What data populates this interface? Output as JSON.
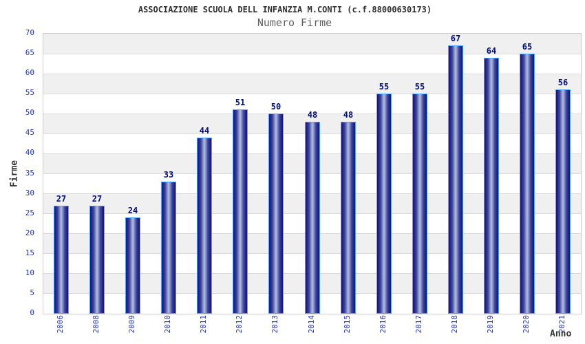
{
  "header": {
    "title": "ASSOCIAZIONE SCUOLA DELL INFANZIA M.CONTI (c.f.88000630173)",
    "subtitle": "Numero Firme"
  },
  "chart_data": {
    "type": "bar",
    "title": "ASSOCIAZIONE SCUOLA DELL INFANZIA M.CONTI (c.f.88000630173)",
    "subtitle": "Numero Firme",
    "xlabel": "Anno",
    "ylabel": "Firme",
    "categories": [
      "2006",
      "2008",
      "2009",
      "2010",
      "2011",
      "2012",
      "2013",
      "2014",
      "2015",
      "2016",
      "2017",
      "2018",
      "2019",
      "2020",
      "2021"
    ],
    "values": [
      27,
      27,
      24,
      33,
      44,
      51,
      50,
      48,
      48,
      55,
      55,
      67,
      64,
      65,
      56
    ],
    "ylim": [
      0,
      70
    ],
    "ytick_step": 5,
    "yticks": [
      0,
      5,
      10,
      15,
      20,
      25,
      30,
      35,
      40,
      45,
      50,
      55,
      60,
      65,
      70
    ],
    "grid": true,
    "legend": "none",
    "colors": {
      "bar_dark": "#14146e",
      "bar_light": "#b4bce2",
      "bar_border": "#4da6ff",
      "value_label": "#000d80",
      "tick_label": "#2233cc",
      "axis_title": "#333333",
      "band_gray": "#f0f0f0",
      "band_white": "#ffffff",
      "gridline": "#dadada",
      "plot_border": "#cccccc",
      "title": "#303030",
      "subtitle": "#606060"
    }
  }
}
